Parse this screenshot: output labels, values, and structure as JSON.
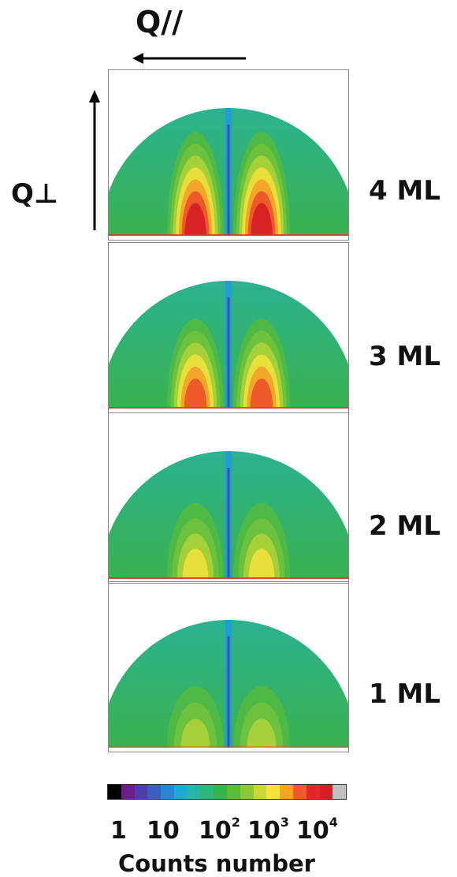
{
  "chart_data": {
    "type": "heatmap",
    "axes": {
      "horizontal": "Q//",
      "vertical": "Q⊥"
    },
    "panels": [
      {
        "label": "4 ML"
      },
      {
        "label": "3 ML"
      },
      {
        "label": "2 ML"
      },
      {
        "label": "1 ML"
      }
    ],
    "colorbar": {
      "title": "Counts number",
      "scale": "log",
      "tick_labels": [
        {
          "base": "1",
          "exp": ""
        },
        {
          "base": "10",
          "exp": ""
        },
        {
          "base": "10",
          "exp": "2"
        },
        {
          "base": "10",
          "exp": "3"
        },
        {
          "base": "10",
          "exp": "4"
        }
      ],
      "colors": [
        "#000000",
        "#6a1f8a",
        "#4a3fa8",
        "#3a5ec2",
        "#2a86d0",
        "#22a8d6",
        "#2ab3a8",
        "#2fb47a",
        "#38b24c",
        "#5cbc3c",
        "#8cc83a",
        "#c9d83a",
        "#f2e23a",
        "#f6a623",
        "#ef5a2a",
        "#e2262a",
        "#d41f26",
        "#c0c0c0"
      ]
    }
  }
}
